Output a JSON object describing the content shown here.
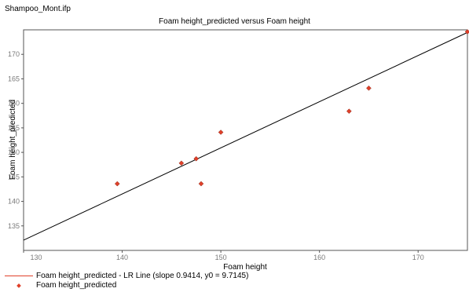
{
  "file_name": "Shampoo_Mont.ifp",
  "chart_data": {
    "type": "scatter",
    "title": "Foam height_predicted versus Foam height",
    "xlabel": "Foam height",
    "ylabel": "Foam height_predicted",
    "xlim": [
      130,
      175
    ],
    "ylim": [
      130,
      175
    ],
    "x_ticks": [
      130,
      140,
      150,
      160,
      170
    ],
    "y_ticks": [
      135,
      140,
      145,
      150,
      155,
      160,
      165,
      170
    ],
    "grid": false,
    "series": [
      {
        "name": "Foam height_predicted",
        "marker": "diamond",
        "color": "#e0402a",
        "points": [
          {
            "x": 139.5,
            "y": 143.6
          },
          {
            "x": 146.0,
            "y": 147.8
          },
          {
            "x": 147.5,
            "y": 148.7
          },
          {
            "x": 148.0,
            "y": 143.6
          },
          {
            "x": 150.0,
            "y": 154.1
          },
          {
            "x": 163.0,
            "y": 158.4
          },
          {
            "x": 165.0,
            "y": 163.1
          },
          {
            "x": 175.0,
            "y": 174.6
          }
        ]
      }
    ],
    "regression": {
      "name": "Foam height_predicted - LR Line (slope 0.9414, y0 = 9.7145)",
      "slope": 0.9414,
      "intercept": 9.7145,
      "color": "#000000"
    },
    "legend_placement": "bottom-left"
  }
}
